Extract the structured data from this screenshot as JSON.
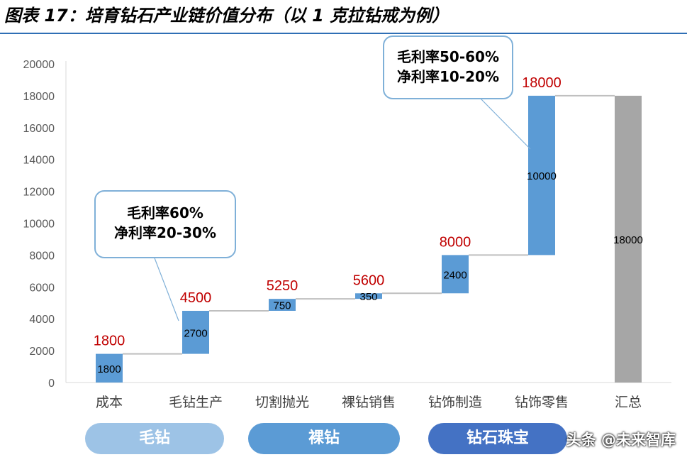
{
  "title": "图表 17：培育钻石产业链价值分布（以 1 克拉钻戒为例）",
  "callouts": [
    {
      "line1": "毛利率60%",
      "line2": "净利率20-30%"
    },
    {
      "line1": "毛利率50-60%",
      "line2": "净利率10-20%"
    }
  ],
  "segments": [
    "毛钻",
    "裸钻",
    "钻石珠宝"
  ],
  "watermark": "头条 @未来智库",
  "colors": {
    "bar": "#5b9bd5",
    "total": "#a6a6a6",
    "connector": "#bfbfbf",
    "cumulative_label": "#c00000",
    "pill1": "#9dc3e6",
    "pill2": "#5b9bd5",
    "pill3": "#4472c4"
  },
  "chart_data": {
    "type": "bar",
    "subtype": "waterfall",
    "categories": [
      "成本",
      "毛钻生产",
      "切割抛光",
      "裸钻销售",
      "钻饰制造",
      "钻饰零售",
      "汇总"
    ],
    "values": [
      1800,
      2700,
      750,
      350,
      2400,
      10000,
      18000
    ],
    "cumulative": [
      1800,
      4500,
      5250,
      5600,
      8000,
      18000,
      null
    ],
    "ylim": [
      0,
      20000
    ],
    "yticks": [
      0,
      2000,
      4000,
      6000,
      8000,
      10000,
      12000,
      14000,
      16000,
      18000,
      20000
    ],
    "grid": false,
    "legend": "none"
  }
}
